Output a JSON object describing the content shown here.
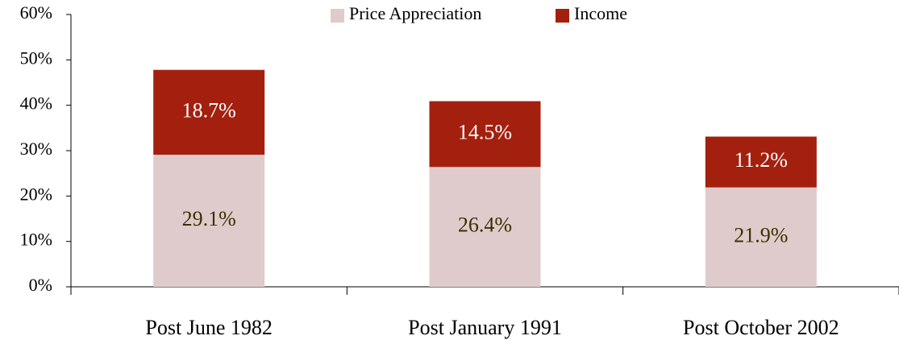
{
  "chart_data": {
    "type": "stacked_bar",
    "categories": [
      "Post June 1982",
      "Post January 1991",
      "Post October 2002"
    ],
    "series": [
      {
        "name": "Price Appreciation",
        "color": "#dfcbcb",
        "values": [
          29.1,
          26.4,
          21.9
        ],
        "value_labels": [
          "29.1%",
          "26.4%",
          "21.9%"
        ]
      },
      {
        "name": "Income",
        "color": "#a3200f",
        "values": [
          18.7,
          14.5,
          11.2
        ],
        "value_labels": [
          "18.7%",
          "14.5%",
          "11.2%"
        ]
      }
    ],
    "ylim": [
      0,
      60
    ],
    "yticks": [
      {
        "value": 0,
        "label": "0%"
      },
      {
        "value": 10,
        "label": "10%"
      },
      {
        "value": 20,
        "label": "20%"
      },
      {
        "value": 30,
        "label": "30%"
      },
      {
        "value": 40,
        "label": "40%"
      },
      {
        "value": 50,
        "label": "50%"
      },
      {
        "value": 60,
        "label": "60%"
      }
    ],
    "legend": "top"
  }
}
